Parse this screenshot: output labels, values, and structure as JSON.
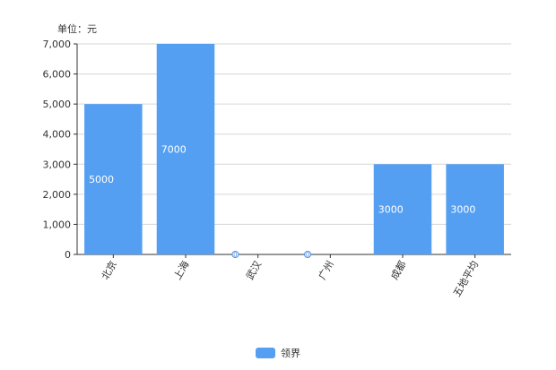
{
  "chart_data": {
    "type": "bar",
    "unit_label": "单位：元",
    "categories": [
      "北京",
      "上海",
      "武汉",
      "广州",
      "成都",
      "五地平均"
    ],
    "series": [
      {
        "name": "领界",
        "values": [
          5000,
          7000,
          0,
          0,
          3000,
          3000
        ],
        "color": "#559ff2"
      }
    ],
    "ylim": [
      0,
      7000
    ],
    "yticks": [
      0,
      1000,
      2000,
      3000,
      4000,
      5000,
      6000,
      7000
    ],
    "ytick_labels": [
      "0",
      "1,000",
      "2,000",
      "3,000",
      "4,000",
      "5,000",
      "6,000",
      "7,000"
    ],
    "grid": true,
    "legend_position": "bottom"
  }
}
